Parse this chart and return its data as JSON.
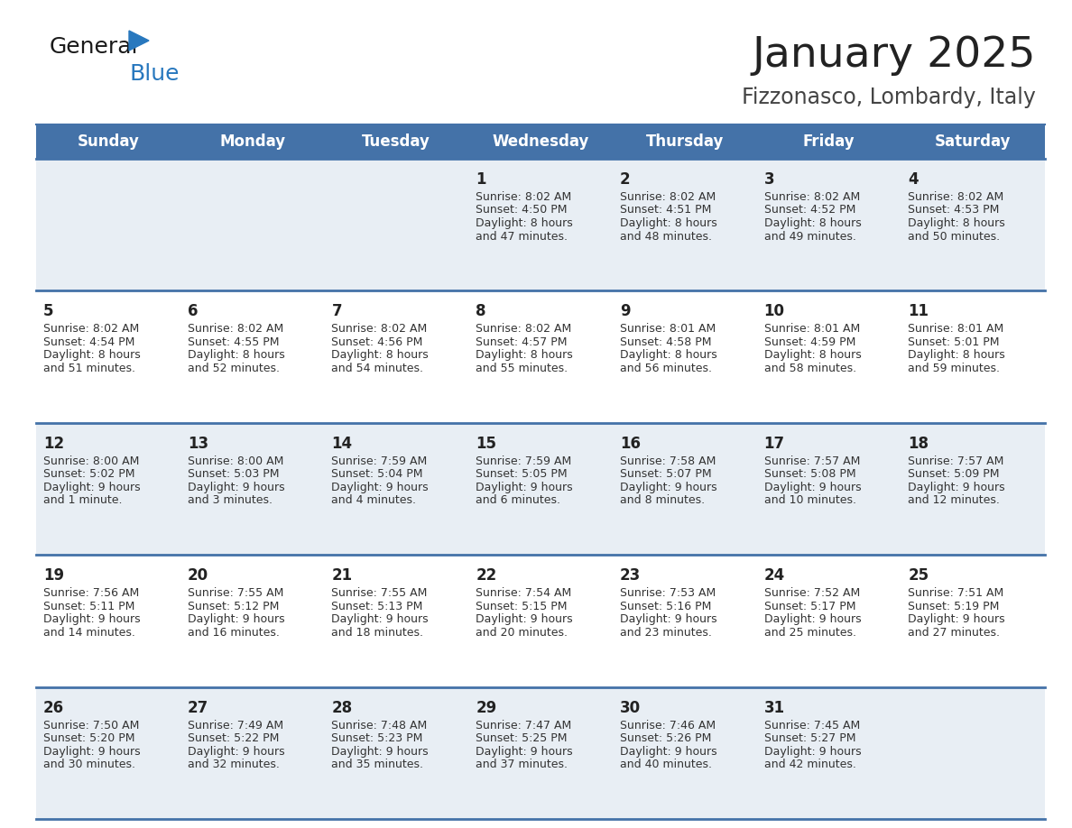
{
  "title": "January 2025",
  "subtitle": "Fizzonasco, Lombardy, Italy",
  "header_bg": "#4472a8",
  "header_text_color": "#ffffff",
  "cell_bg_even": "#e8eef4",
  "cell_bg_odd": "#ffffff",
  "row_line_color": "#4472a8",
  "day_number_color": "#222222",
  "cell_text_color": "#333333",
  "days_of_week": [
    "Sunday",
    "Monday",
    "Tuesday",
    "Wednesday",
    "Thursday",
    "Friday",
    "Saturday"
  ],
  "calendar_data": [
    [
      "",
      "",
      "",
      "1\nSunrise: 8:02 AM\nSunset: 4:50 PM\nDaylight: 8 hours\nand 47 minutes.",
      "2\nSunrise: 8:02 AM\nSunset: 4:51 PM\nDaylight: 8 hours\nand 48 minutes.",
      "3\nSunrise: 8:02 AM\nSunset: 4:52 PM\nDaylight: 8 hours\nand 49 minutes.",
      "4\nSunrise: 8:02 AM\nSunset: 4:53 PM\nDaylight: 8 hours\nand 50 minutes."
    ],
    [
      "5\nSunrise: 8:02 AM\nSunset: 4:54 PM\nDaylight: 8 hours\nand 51 minutes.",
      "6\nSunrise: 8:02 AM\nSunset: 4:55 PM\nDaylight: 8 hours\nand 52 minutes.",
      "7\nSunrise: 8:02 AM\nSunset: 4:56 PM\nDaylight: 8 hours\nand 54 minutes.",
      "8\nSunrise: 8:02 AM\nSunset: 4:57 PM\nDaylight: 8 hours\nand 55 minutes.",
      "9\nSunrise: 8:01 AM\nSunset: 4:58 PM\nDaylight: 8 hours\nand 56 minutes.",
      "10\nSunrise: 8:01 AM\nSunset: 4:59 PM\nDaylight: 8 hours\nand 58 minutes.",
      "11\nSunrise: 8:01 AM\nSunset: 5:01 PM\nDaylight: 8 hours\nand 59 minutes."
    ],
    [
      "12\nSunrise: 8:00 AM\nSunset: 5:02 PM\nDaylight: 9 hours\nand 1 minute.",
      "13\nSunrise: 8:00 AM\nSunset: 5:03 PM\nDaylight: 9 hours\nand 3 minutes.",
      "14\nSunrise: 7:59 AM\nSunset: 5:04 PM\nDaylight: 9 hours\nand 4 minutes.",
      "15\nSunrise: 7:59 AM\nSunset: 5:05 PM\nDaylight: 9 hours\nand 6 minutes.",
      "16\nSunrise: 7:58 AM\nSunset: 5:07 PM\nDaylight: 9 hours\nand 8 minutes.",
      "17\nSunrise: 7:57 AM\nSunset: 5:08 PM\nDaylight: 9 hours\nand 10 minutes.",
      "18\nSunrise: 7:57 AM\nSunset: 5:09 PM\nDaylight: 9 hours\nand 12 minutes."
    ],
    [
      "19\nSunrise: 7:56 AM\nSunset: 5:11 PM\nDaylight: 9 hours\nand 14 minutes.",
      "20\nSunrise: 7:55 AM\nSunset: 5:12 PM\nDaylight: 9 hours\nand 16 minutes.",
      "21\nSunrise: 7:55 AM\nSunset: 5:13 PM\nDaylight: 9 hours\nand 18 minutes.",
      "22\nSunrise: 7:54 AM\nSunset: 5:15 PM\nDaylight: 9 hours\nand 20 minutes.",
      "23\nSunrise: 7:53 AM\nSunset: 5:16 PM\nDaylight: 9 hours\nand 23 minutes.",
      "24\nSunrise: 7:52 AM\nSunset: 5:17 PM\nDaylight: 9 hours\nand 25 minutes.",
      "25\nSunrise: 7:51 AM\nSunset: 5:19 PM\nDaylight: 9 hours\nand 27 minutes."
    ],
    [
      "26\nSunrise: 7:50 AM\nSunset: 5:20 PM\nDaylight: 9 hours\nand 30 minutes.",
      "27\nSunrise: 7:49 AM\nSunset: 5:22 PM\nDaylight: 9 hours\nand 32 minutes.",
      "28\nSunrise: 7:48 AM\nSunset: 5:23 PM\nDaylight: 9 hours\nand 35 minutes.",
      "29\nSunrise: 7:47 AM\nSunset: 5:25 PM\nDaylight: 9 hours\nand 37 minutes.",
      "30\nSunrise: 7:46 AM\nSunset: 5:26 PM\nDaylight: 9 hours\nand 40 minutes.",
      "31\nSunrise: 7:45 AM\nSunset: 5:27 PM\nDaylight: 9 hours\nand 42 minutes.",
      ""
    ]
  ],
  "logo_triangle_color": "#2878be",
  "logo_blue_color": "#2878be",
  "logo_black_color": "#1a1a1a",
  "title_fontsize": 34,
  "subtitle_fontsize": 17,
  "header_fontsize": 12,
  "day_num_fontsize": 12,
  "cell_fontsize": 9
}
